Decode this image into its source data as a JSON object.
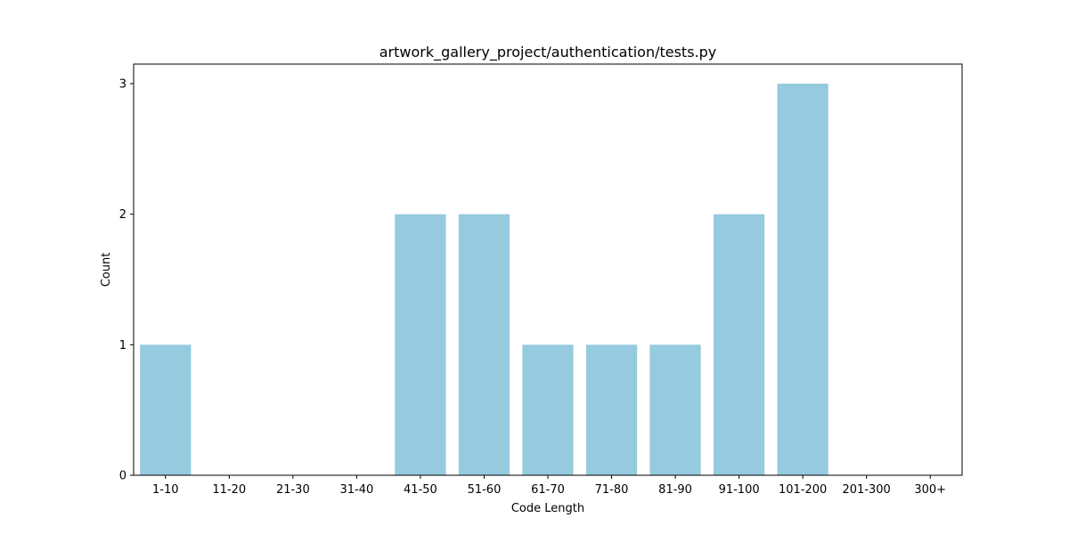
{
  "chart_data": {
    "type": "bar",
    "title": "artwork_gallery_project/authentication/tests.py",
    "xlabel": "Code Length",
    "ylabel": "Count",
    "categories": [
      "1-10",
      "11-20",
      "21-30",
      "31-40",
      "41-50",
      "51-60",
      "61-70",
      "71-80",
      "81-90",
      "91-100",
      "101-200",
      "201-300",
      "300+"
    ],
    "values": [
      1,
      0,
      0,
      0,
      2,
      2,
      1,
      1,
      1,
      2,
      3,
      0,
      0
    ],
    "yticks": [
      0,
      1,
      2,
      3
    ],
    "ylim": [
      0,
      3.15
    ],
    "grid": false,
    "bar_color": "#96cadf"
  }
}
